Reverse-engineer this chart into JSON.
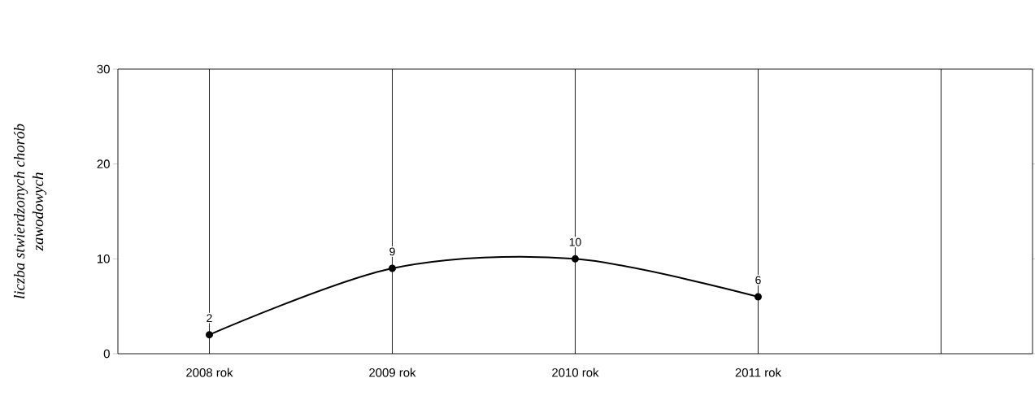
{
  "chart_data": {
    "type": "line",
    "ylabel": "*liczba stwierdzonych chorób zawodowych*",
    "categories": [
      "2008 rok",
      "2009 rok",
      "2010 rok",
      "2011 rok",
      null
    ],
    "values": [
      2,
      9,
      10,
      6,
      null
    ],
    "color": "#000000",
    "ylim": [
      0,
      30
    ],
    "yticks": [
      0,
      10,
      20,
      30
    ],
    "grid": "x",
    "marker": "circle",
    "line_style": "solid",
    "data_labels": true
  }
}
